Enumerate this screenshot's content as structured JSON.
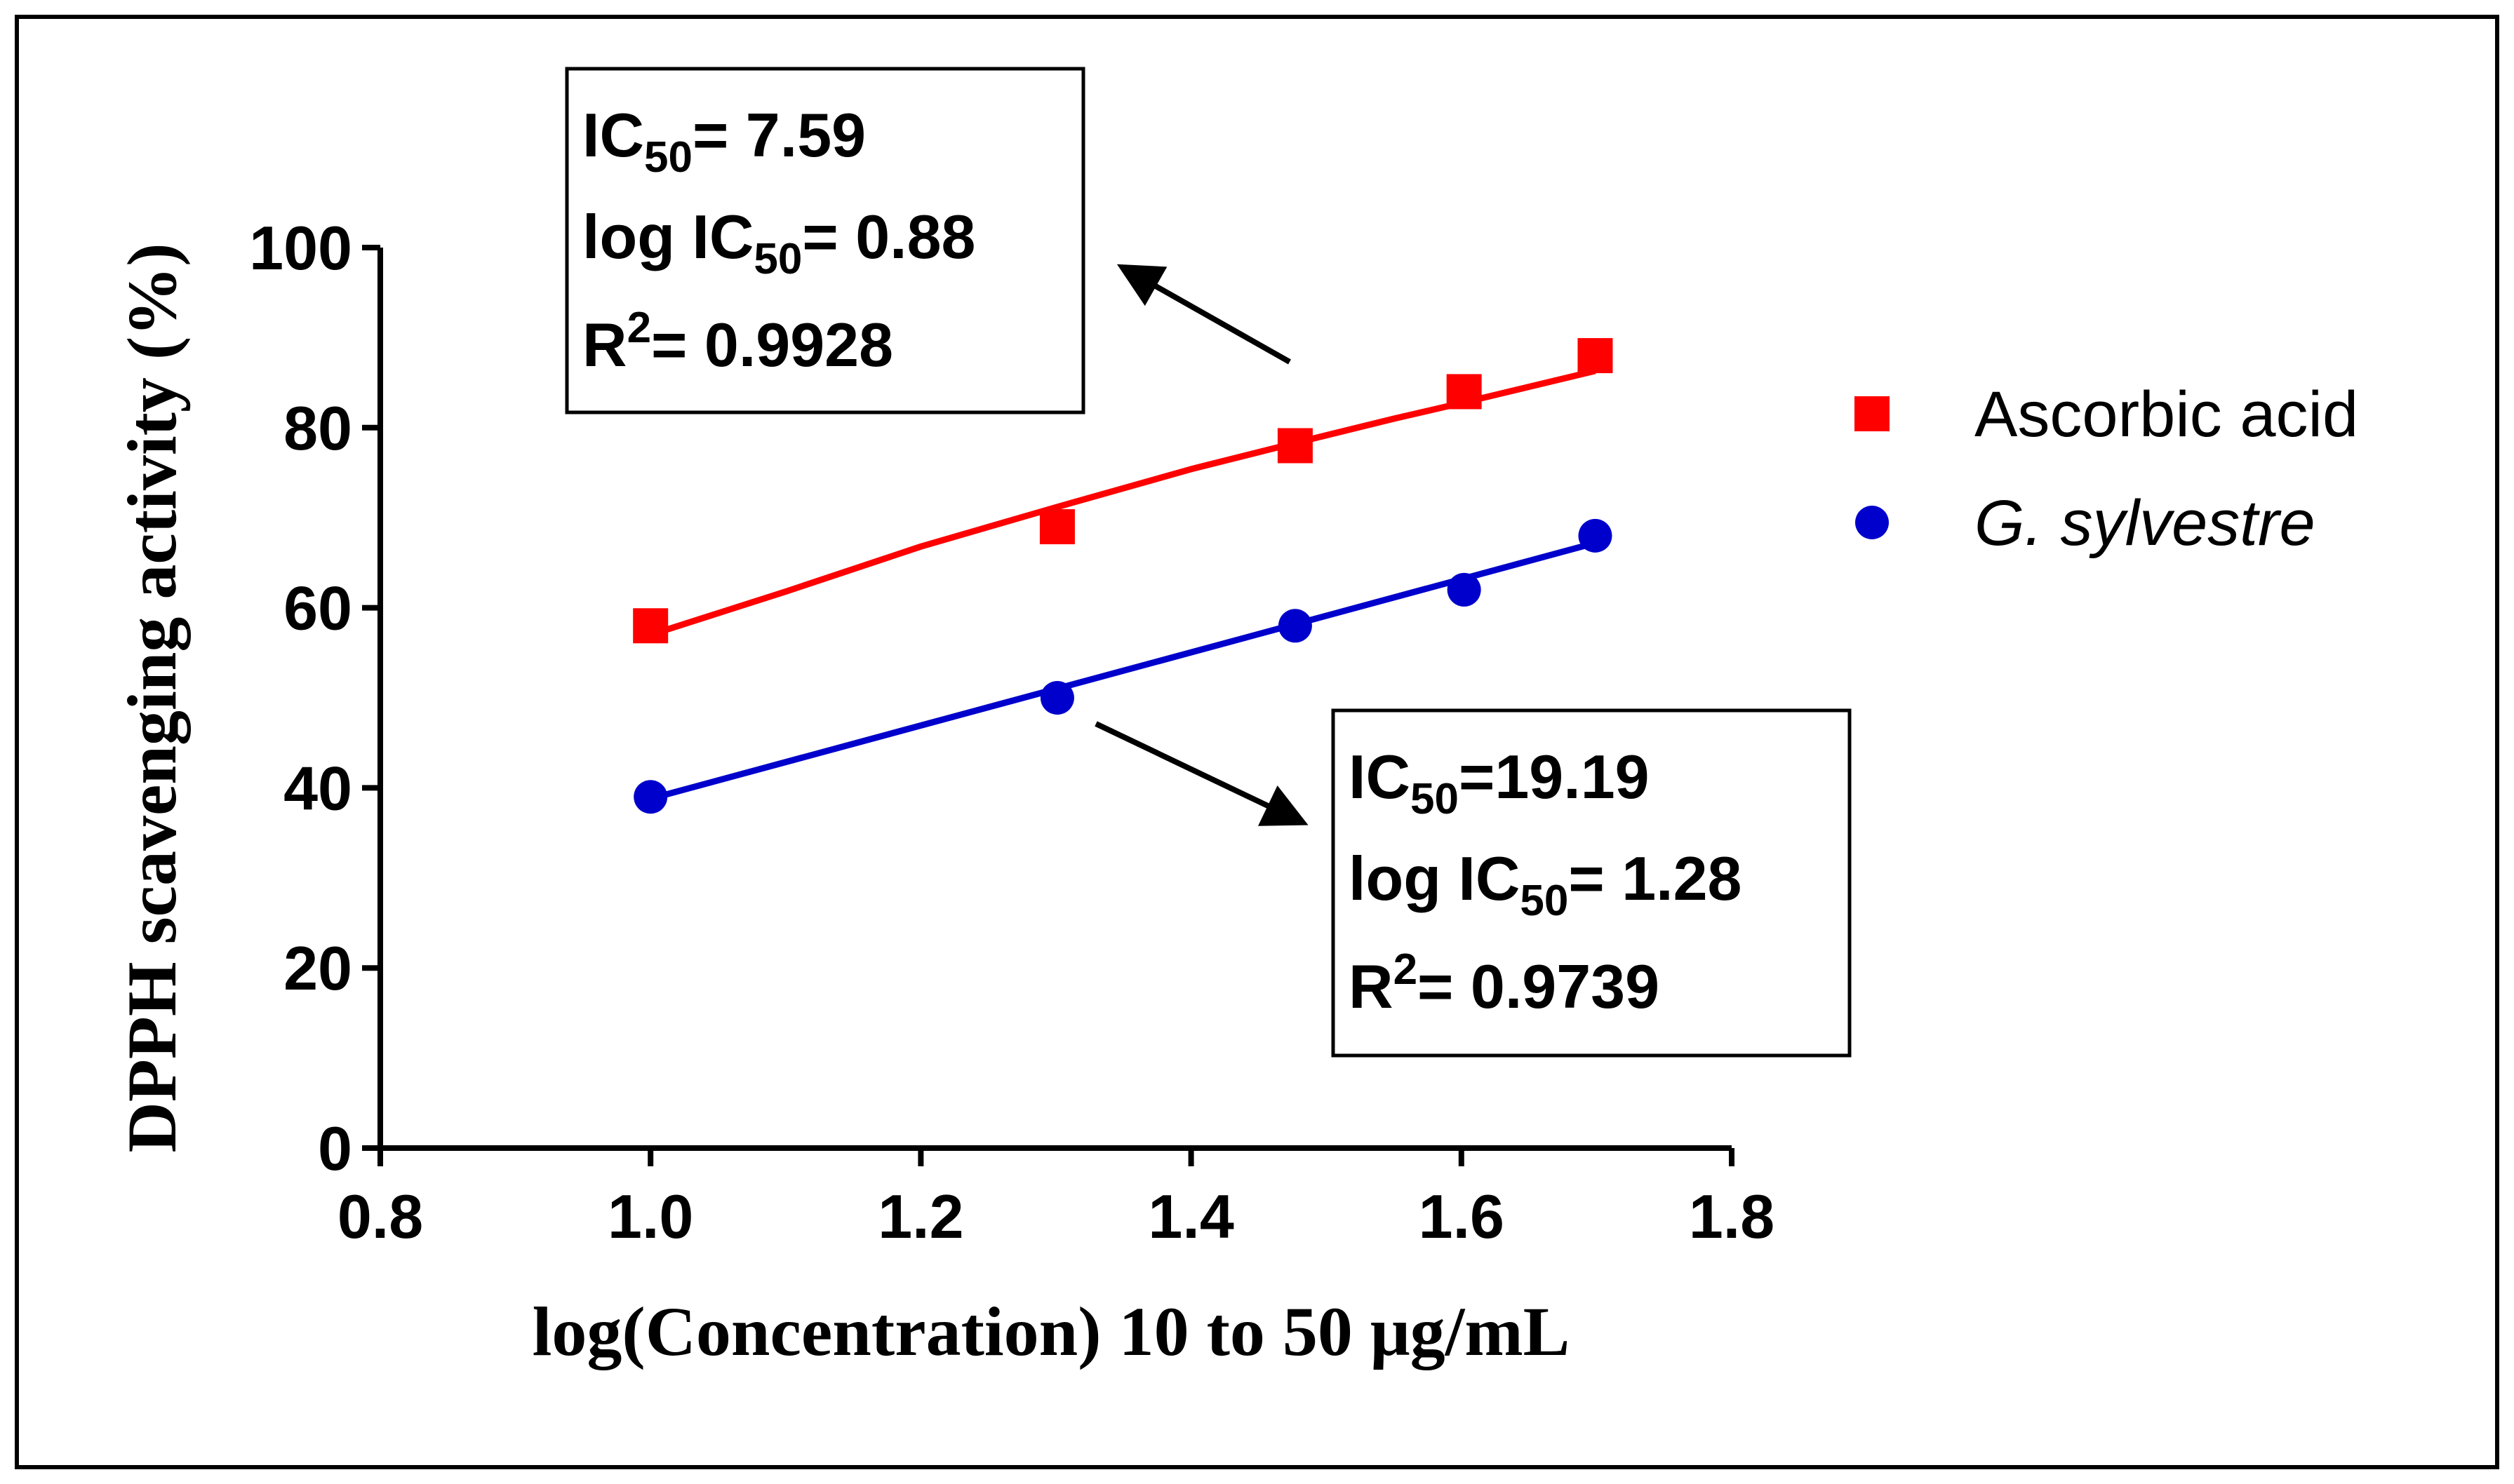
{
  "chart_data": {
    "type": "scatter",
    "title": "",
    "xlabel": "log(Concentration) 10 to 50 μg/mL",
    "ylabel": "DPPH scavenging activity (%)",
    "xlim": [
      0.8,
      1.8
    ],
    "ylim": [
      0,
      100
    ],
    "xticks": [
      "0.8",
      "1.0",
      "1.2",
      "1.4",
      "1.6",
      "1.8"
    ],
    "yticks": [
      "0",
      "20",
      "40",
      "60",
      "80",
      "100"
    ],
    "grid": false,
    "legend_position": "right",
    "series": [
      {
        "name": "Ascorbic acid",
        "italic": false,
        "marker": "square",
        "color": "#ff0000",
        "x": [
          1.0,
          1.301,
          1.477,
          1.602,
          1.699
        ],
        "y": [
          58,
          69,
          78,
          84,
          88
        ],
        "fit_curve": {
          "x": [
            1.0,
            1.1,
            1.2,
            1.301,
            1.4,
            1.477,
            1.55,
            1.602,
            1.699
          ],
          "y": [
            57,
            61.8,
            66.8,
            71.2,
            75.4,
            78.3,
            81.0,
            82.8,
            86.3
          ]
        },
        "annotation": {
          "line1_label": "IC",
          "line1_sub": "50",
          "line1_value": "= 7.59",
          "line2_label": "log IC",
          "line2_sub": "50",
          "line2_value": "= 0.88",
          "line3_label": "R",
          "line3_sup": "2",
          "line3_value": "= 0.9928"
        }
      },
      {
        "name": "G. sylvestre",
        "italic": true,
        "marker": "circle",
        "color": "#0000cc",
        "x": [
          1.0,
          1.301,
          1.477,
          1.602,
          1.699
        ],
        "y": [
          39,
          50,
          58,
          62,
          68
        ],
        "fit_curve": {
          "x": [
            1.0,
            1.699
          ],
          "y": [
            38.8,
            67.2
          ]
        },
        "annotation": {
          "line1_label": "IC",
          "line1_sub": "50",
          "line1_value": "=19.19",
          "line2_label": "log IC",
          "line2_sub": "50",
          "line2_value": "= 1.28",
          "line3_label": "R",
          "line3_sup": "2",
          "line3_value": "= 0.9739"
        }
      }
    ]
  }
}
